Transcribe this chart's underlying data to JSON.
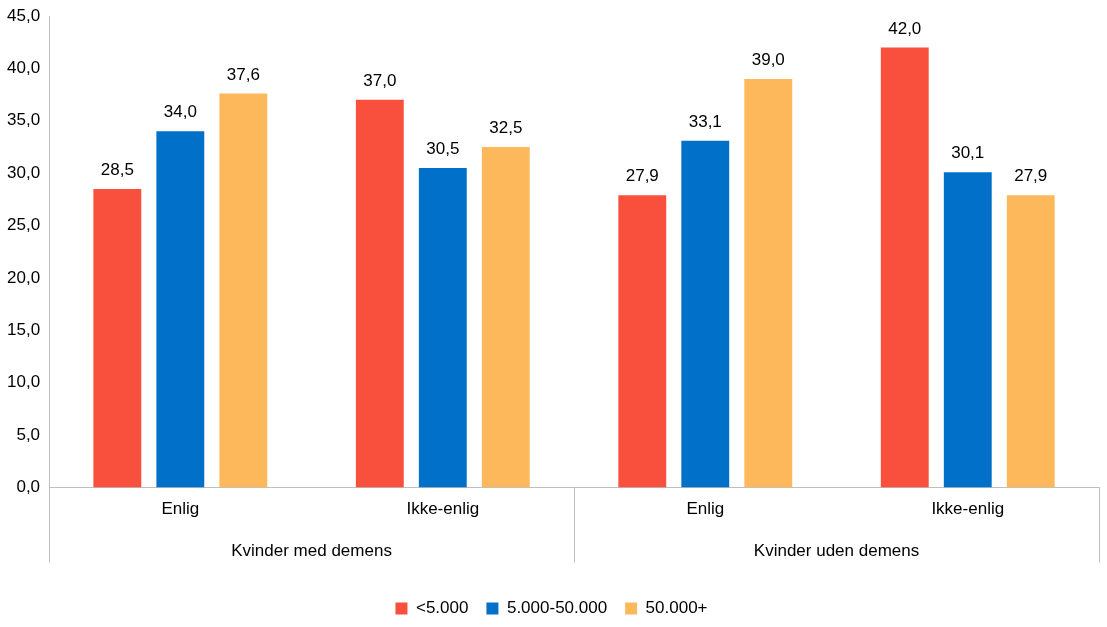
{
  "chart_data": {
    "type": "bar",
    "categories": [
      "Enlig",
      "Ikke-enlig",
      "Enlig",
      "Ikke-enlig"
    ],
    "series": [
      {
        "name": "<5.000",
        "color": "#f94f3d",
        "values": [
          28.5,
          37.0,
          27.9,
          42.0
        ],
        "value_labels": [
          "28,5",
          "37,0",
          "27,9",
          "42,0"
        ]
      },
      {
        "name": "5.000-50.000",
        "color": "#0070c9",
        "values": [
          34.0,
          30.5,
          33.1,
          30.1
        ],
        "value_labels": [
          "34,0",
          "30,5",
          "33,1",
          "30,1"
        ]
      },
      {
        "name": "50.000+",
        "color": "#fdb85b",
        "values": [
          37.6,
          32.5,
          39.0,
          27.9
        ],
        "value_labels": [
          "37,6",
          "32,5",
          "39,0",
          "27,9"
        ]
      }
    ],
    "annotations": [
      "Kvinder med demens",
      "Kvinder uden demens"
    ],
    "ylim": [
      0,
      45
    ],
    "yticks": [
      {
        "value": 0,
        "label": "0,0"
      },
      {
        "value": 5,
        "label": "5,0"
      },
      {
        "value": 10,
        "label": "10,0"
      },
      {
        "value": 15,
        "label": "15,0"
      },
      {
        "value": 20,
        "label": "20,0"
      },
      {
        "value": 25,
        "label": "25,0"
      },
      {
        "value": 30,
        "label": "30,0"
      },
      {
        "value": 35,
        "label": "35,0"
      },
      {
        "value": 40,
        "label": "40,0"
      },
      {
        "value": 45,
        "label": "45,0"
      }
    ],
    "grid": false,
    "legend": "bottom"
  }
}
